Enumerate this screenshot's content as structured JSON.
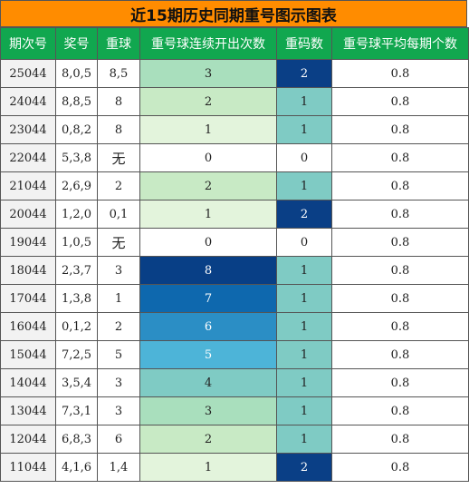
{
  "title": "近15期历史同期重号图示图表",
  "columns": [
    "期次号",
    "奖号",
    "重球",
    "重号球连续开出次数",
    "重码数",
    "重号球平均每期个数"
  ],
  "rows": [
    {
      "issue": "25044",
      "number": "8,0,5",
      "repeat": "8,5",
      "run": 3,
      "count": 2,
      "avg": "0.8"
    },
    {
      "issue": "24044",
      "number": "8,8,5",
      "repeat": "8",
      "run": 2,
      "count": 1,
      "avg": "0.8"
    },
    {
      "issue": "23044",
      "number": "0,8,2",
      "repeat": "8",
      "run": 1,
      "count": 1,
      "avg": "0.8"
    },
    {
      "issue": "22044",
      "number": "5,3,8",
      "repeat": "无",
      "run": 0,
      "count": 0,
      "avg": "0.8"
    },
    {
      "issue": "21044",
      "number": "2,6,9",
      "repeat": "2",
      "run": 2,
      "count": 1,
      "avg": "0.8"
    },
    {
      "issue": "20044",
      "number": "1,2,0",
      "repeat": "0,1",
      "run": 1,
      "count": 2,
      "avg": "0.8"
    },
    {
      "issue": "19044",
      "number": "1,0,5",
      "repeat": "无",
      "run": 0,
      "count": 0,
      "avg": "0.8"
    },
    {
      "issue": "18044",
      "number": "2,3,7",
      "repeat": "3",
      "run": 8,
      "count": 1,
      "avg": "0.8"
    },
    {
      "issue": "17044",
      "number": "1,3,8",
      "repeat": "1",
      "run": 7,
      "count": 1,
      "avg": "0.8"
    },
    {
      "issue": "16044",
      "number": "0,1,2",
      "repeat": "2",
      "run": 6,
      "count": 1,
      "avg": "0.8"
    },
    {
      "issue": "15044",
      "number": "7,2,5",
      "repeat": "5",
      "run": 5,
      "count": 1,
      "avg": "0.8"
    },
    {
      "issue": "14044",
      "number": "3,5,4",
      "repeat": "3",
      "run": 4,
      "count": 1,
      "avg": "0.8"
    },
    {
      "issue": "13044",
      "number": "7,3,1",
      "repeat": "3",
      "run": 3,
      "count": 1,
      "avg": "0.8"
    },
    {
      "issue": "12044",
      "number": "6,8,3",
      "repeat": "6",
      "run": 2,
      "count": 1,
      "avg": "0.8"
    },
    {
      "issue": "11044",
      "number": "4,1,6",
      "repeat": "1,4",
      "run": 1,
      "count": 2,
      "avg": "0.8"
    }
  ],
  "colors": {
    "title_bg": "#ff8c00",
    "header_bg": "#11a74f",
    "header_text": "#ffffff"
  }
}
